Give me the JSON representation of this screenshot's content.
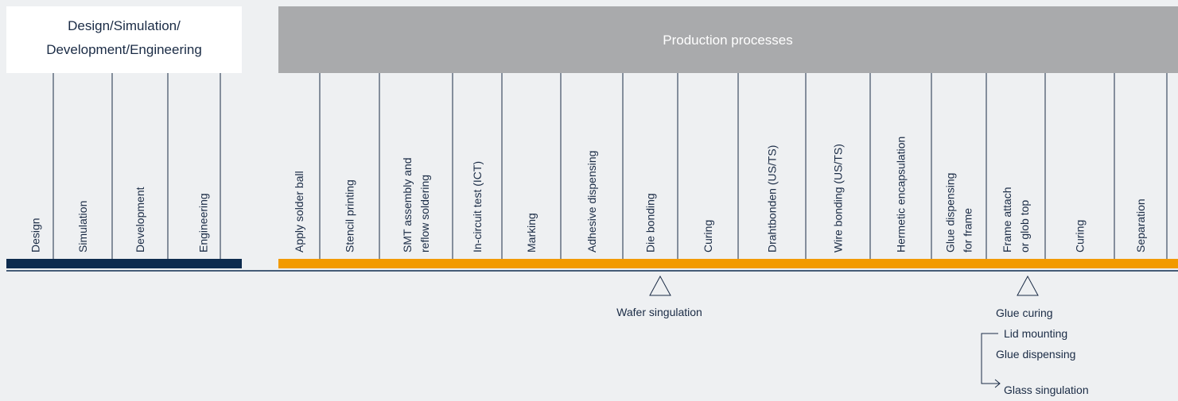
{
  "header": {
    "left_title": [
      "Design/Simulation/",
      "Development/Engineering"
    ],
    "right_title": "Production processes"
  },
  "design_columns": [
    [
      "Design"
    ],
    [
      "Simulation"
    ],
    [
      "Development"
    ],
    [
      "Engineering"
    ]
  ],
  "production_columns": [
    [
      "Apply solder ball"
    ],
    [
      "Stencil printing"
    ],
    [
      "SMT assembly and",
      "reflow soldering"
    ],
    [
      "In-circuit test (ICT)"
    ],
    [
      "Marking"
    ],
    [
      "Adhesive dispensing"
    ],
    [
      "Die bonding"
    ],
    [
      "Curing"
    ],
    [
      "Drahtbonden (US/TS)"
    ],
    [
      "Wire bonding (US/TS)"
    ],
    [
      "Hermetic encapsulation"
    ],
    [
      "Glue dispensing",
      "for frame"
    ],
    [
      "Frame attach",
      "or glob top"
    ],
    [
      "Curing"
    ],
    [
      "Separation"
    ]
  ],
  "annotations": {
    "wafer": "Wafer singulation",
    "glue_curing": "Glue curing",
    "lid_mounting": "Lid mounting",
    "glue_dispensing": "Glue dispensing",
    "glass_singulation": "Glass singulation"
  }
}
